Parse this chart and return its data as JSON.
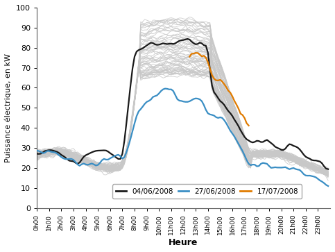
{
  "xlabel": "Heure",
  "ylabel": "Puissance électrique, en kW",
  "ylim": [
    0,
    100
  ],
  "yticks": [
    0,
    10,
    20,
    30,
    40,
    50,
    60,
    70,
    80,
    90,
    100
  ],
  "xtick_labels": [
    "0h00",
    "1h00",
    "2h00",
    "3h00",
    "4h00",
    "5h00",
    "6h00",
    "7h00",
    "8h00",
    "9h00",
    "10h00",
    "11h00",
    "12h00",
    "13h00",
    "14h00",
    "15h00",
    "16h00",
    "17h00",
    "18h00",
    "19h00",
    "20h00",
    "21h00",
    "22h00",
    "23h00"
  ],
  "legend_labels": [
    "04/06/2008",
    "27/06/2008",
    "17/07/2008"
  ],
  "legend_colors": [
    "#1a1a1a",
    "#3a8ec4",
    "#e07b00"
  ],
  "gray_color": "#c8c8c8",
  "black_color": "#1a1a1a",
  "blue_color": "#3a8ec4",
  "orange_color": "#e07b00",
  "background_color": "#ffffff",
  "n_gray_lines": 68
}
